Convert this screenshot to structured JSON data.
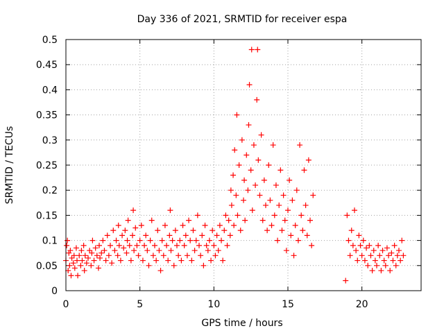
{
  "chart_data": {
    "type": "scatter",
    "title": "Day 336 of 2021, SRMTID for receiver espa",
    "xlabel": "GPS time / hours",
    "ylabel": "SRMTID / TECUs",
    "xlim": [
      0,
      24
    ],
    "ylim": [
      0,
      0.5
    ],
    "x_ticks": [
      0,
      5,
      10,
      15,
      20
    ],
    "x_tick_labels": [
      "0",
      "5",
      "10",
      "15",
      "20"
    ],
    "y_ticks": [
      0,
      0.05,
      0.1,
      0.15,
      0.2,
      0.25,
      0.3,
      0.35,
      0.4,
      0.45,
      0.5
    ],
    "y_tick_labels": [
      "0",
      "0.05",
      "0.1",
      "0.15",
      "0.2",
      "0.25",
      "0.3",
      "0.35",
      "0.4",
      "0.45",
      "0.5"
    ],
    "grid": true,
    "marker": "+",
    "color": "#ff0000",
    "series": [
      {
        "name": "SRMTID",
        "points": [
          [
            0.0,
            0.06
          ],
          [
            0.05,
            0.09
          ],
          [
            0.1,
            0.1
          ],
          [
            0.15,
            0.04
          ],
          [
            0.2,
            0.075
          ],
          [
            0.25,
            0.05
          ],
          [
            0.3,
            0.08
          ],
          [
            0.35,
            0.03
          ],
          [
            0.4,
            0.065
          ],
          [
            0.5,
            0.055
          ],
          [
            0.55,
            0.07
          ],
          [
            0.6,
            0.045
          ],
          [
            0.7,
            0.085
          ],
          [
            0.75,
            0.06
          ],
          [
            0.8,
            0.03
          ],
          [
            0.9,
            0.07
          ],
          [
            1.0,
            0.05
          ],
          [
            1.05,
            0.08
          ],
          [
            1.1,
            0.06
          ],
          [
            1.2,
            0.09
          ],
          [
            1.25,
            0.04
          ],
          [
            1.3,
            0.07
          ],
          [
            1.4,
            0.055
          ],
          [
            1.5,
            0.065
          ],
          [
            1.6,
            0.08
          ],
          [
            1.7,
            0.05
          ],
          [
            1.75,
            0.075
          ],
          [
            1.8,
            0.1
          ],
          [
            1.9,
            0.06
          ],
          [
            2.0,
            0.085
          ],
          [
            2.1,
            0.07
          ],
          [
            2.2,
            0.045
          ],
          [
            2.25,
            0.09
          ],
          [
            2.3,
            0.065
          ],
          [
            2.4,
            0.075
          ],
          [
            2.5,
            0.1
          ],
          [
            2.6,
            0.08
          ],
          [
            2.7,
            0.06
          ],
          [
            2.8,
            0.11
          ],
          [
            2.9,
            0.07
          ],
          [
            3.0,
            0.09
          ],
          [
            3.1,
            0.055
          ],
          [
            3.2,
            0.12
          ],
          [
            3.3,
            0.08
          ],
          [
            3.4,
            0.1
          ],
          [
            3.5,
            0.07
          ],
          [
            3.55,
            0.13
          ],
          [
            3.6,
            0.09
          ],
          [
            3.7,
            0.06
          ],
          [
            3.8,
            0.11
          ],
          [
            3.9,
            0.085
          ],
          [
            4.0,
            0.12
          ],
          [
            4.1,
            0.075
          ],
          [
            4.15,
            0.1
          ],
          [
            4.2,
            0.14
          ],
          [
            4.3,
            0.09
          ],
          [
            4.4,
            0.06
          ],
          [
            4.5,
            0.11
          ],
          [
            4.55,
            0.16
          ],
          [
            4.6,
            0.08
          ],
          [
            4.7,
            0.125
          ],
          [
            4.8,
            0.09
          ],
          [
            4.9,
            0.07
          ],
          [
            5.0,
            0.1
          ],
          [
            5.1,
            0.13
          ],
          [
            5.2,
            0.06
          ],
          [
            5.3,
            0.09
          ],
          [
            5.4,
            0.11
          ],
          [
            5.5,
            0.08
          ],
          [
            5.6,
            0.05
          ],
          [
            5.7,
            0.1
          ],
          [
            5.8,
            0.14
          ],
          [
            5.9,
            0.07
          ],
          [
            6.0,
            0.09
          ],
          [
            6.1,
            0.06
          ],
          [
            6.2,
            0.12
          ],
          [
            6.3,
            0.08
          ],
          [
            6.4,
            0.04
          ],
          [
            6.5,
            0.1
          ],
          [
            6.6,
            0.07
          ],
          [
            6.7,
            0.13
          ],
          [
            6.8,
            0.09
          ],
          [
            6.9,
            0.06
          ],
          [
            7.0,
            0.11
          ],
          [
            7.05,
            0.16
          ],
          [
            7.1,
            0.08
          ],
          [
            7.2,
            0.1
          ],
          [
            7.3,
            0.05
          ],
          [
            7.4,
            0.12
          ],
          [
            7.5,
            0.09
          ],
          [
            7.6,
            0.07
          ],
          [
            7.7,
            0.1
          ],
          [
            7.8,
            0.06
          ],
          [
            7.9,
            0.13
          ],
          [
            8.0,
            0.09
          ],
          [
            8.1,
            0.11
          ],
          [
            8.2,
            0.07
          ],
          [
            8.3,
            0.14
          ],
          [
            8.4,
            0.1
          ],
          [
            8.5,
            0.06
          ],
          [
            8.6,
            0.12
          ],
          [
            8.7,
            0.08
          ],
          [
            8.8,
            0.1
          ],
          [
            8.9,
            0.15
          ],
          [
            9.0,
            0.09
          ],
          [
            9.1,
            0.07
          ],
          [
            9.2,
            0.11
          ],
          [
            9.3,
            0.05
          ],
          [
            9.4,
            0.13
          ],
          [
            9.5,
            0.09
          ],
          [
            9.6,
            0.08
          ],
          [
            9.7,
            0.1
          ],
          [
            9.8,
            0.06
          ],
          [
            9.9,
            0.12
          ],
          [
            10.0,
            0.09
          ],
          [
            10.1,
            0.07
          ],
          [
            10.2,
            0.11
          ],
          [
            10.3,
            0.08
          ],
          [
            10.4,
            0.13
          ],
          [
            10.5,
            0.1
          ],
          [
            10.6,
            0.06
          ],
          [
            10.7,
            0.12
          ],
          [
            10.8,
            0.15
          ],
          [
            10.9,
            0.09
          ],
          [
            11.0,
            0.14
          ],
          [
            11.1,
            0.11
          ],
          [
            11.15,
            0.2
          ],
          [
            11.2,
            0.17
          ],
          [
            11.3,
            0.23
          ],
          [
            11.35,
            0.13
          ],
          [
            11.4,
            0.28
          ],
          [
            11.5,
            0.19
          ],
          [
            11.55,
            0.35
          ],
          [
            11.6,
            0.15
          ],
          [
            11.7,
            0.25
          ],
          [
            11.8,
            0.12
          ],
          [
            11.9,
            0.3
          ],
          [
            12.0,
            0.18
          ],
          [
            12.05,
            0.22
          ],
          [
            12.1,
            0.14
          ],
          [
            12.2,
            0.27
          ],
          [
            12.3,
            0.2
          ],
          [
            12.35,
            0.33
          ],
          [
            12.4,
            0.41
          ],
          [
            12.5,
            0.24
          ],
          [
            12.55,
            0.48
          ],
          [
            12.6,
            0.16
          ],
          [
            12.7,
            0.29
          ],
          [
            12.8,
            0.21
          ],
          [
            12.9,
            0.38
          ],
          [
            12.95,
            0.48
          ],
          [
            13.0,
            0.26
          ],
          [
            13.1,
            0.19
          ],
          [
            13.2,
            0.31
          ],
          [
            13.3,
            0.14
          ],
          [
            13.4,
            0.22
          ],
          [
            13.5,
            0.17
          ],
          [
            13.6,
            0.12
          ],
          [
            13.7,
            0.25
          ],
          [
            13.8,
            0.18
          ],
          [
            13.9,
            0.13
          ],
          [
            14.0,
            0.29
          ],
          [
            14.1,
            0.15
          ],
          [
            14.2,
            0.21
          ],
          [
            14.3,
            0.1
          ],
          [
            14.4,
            0.17
          ],
          [
            14.5,
            0.24
          ],
          [
            14.6,
            0.12
          ],
          [
            14.7,
            0.19
          ],
          [
            14.8,
            0.14
          ],
          [
            14.9,
            0.08
          ],
          [
            15.0,
            0.16
          ],
          [
            15.1,
            0.22
          ],
          [
            15.2,
            0.11
          ],
          [
            15.3,
            0.18
          ],
          [
            15.4,
            0.07
          ],
          [
            15.5,
            0.13
          ],
          [
            15.6,
            0.2
          ],
          [
            15.7,
            0.1
          ],
          [
            15.8,
            0.29
          ],
          [
            15.9,
            0.15
          ],
          [
            16.0,
            0.12
          ],
          [
            16.1,
            0.24
          ],
          [
            16.2,
            0.17
          ],
          [
            16.3,
            0.11
          ],
          [
            16.4,
            0.26
          ],
          [
            16.5,
            0.14
          ],
          [
            16.6,
            0.09
          ],
          [
            16.7,
            0.19
          ],
          [
            18.9,
            0.02
          ],
          [
            19.0,
            0.15
          ],
          [
            19.1,
            0.1
          ],
          [
            19.2,
            0.07
          ],
          [
            19.3,
            0.12
          ],
          [
            19.4,
            0.09
          ],
          [
            19.5,
            0.16
          ],
          [
            19.6,
            0.08
          ],
          [
            19.7,
            0.06
          ],
          [
            19.8,
            0.11
          ],
          [
            19.9,
            0.09
          ],
          [
            20.0,
            0.07
          ],
          [
            20.1,
            0.1
          ],
          [
            20.2,
            0.06
          ],
          [
            20.3,
            0.085
          ],
          [
            20.4,
            0.05
          ],
          [
            20.5,
            0.09
          ],
          [
            20.6,
            0.07
          ],
          [
            20.7,
            0.04
          ],
          [
            20.8,
            0.08
          ],
          [
            20.9,
            0.06
          ],
          [
            21.0,
            0.05
          ],
          [
            21.1,
            0.09
          ],
          [
            21.2,
            0.07
          ],
          [
            21.3,
            0.04
          ],
          [
            21.4,
            0.08
          ],
          [
            21.5,
            0.06
          ],
          [
            21.6,
            0.05
          ],
          [
            21.7,
            0.085
          ],
          [
            21.8,
            0.07
          ],
          [
            21.9,
            0.04
          ],
          [
            22.0,
            0.075
          ],
          [
            22.1,
            0.06
          ],
          [
            22.2,
            0.09
          ],
          [
            22.3,
            0.05
          ],
          [
            22.4,
            0.07
          ],
          [
            22.5,
            0.08
          ],
          [
            22.6,
            0.06
          ],
          [
            22.7,
            0.1
          ],
          [
            22.8,
            0.07
          ]
        ]
      }
    ]
  }
}
